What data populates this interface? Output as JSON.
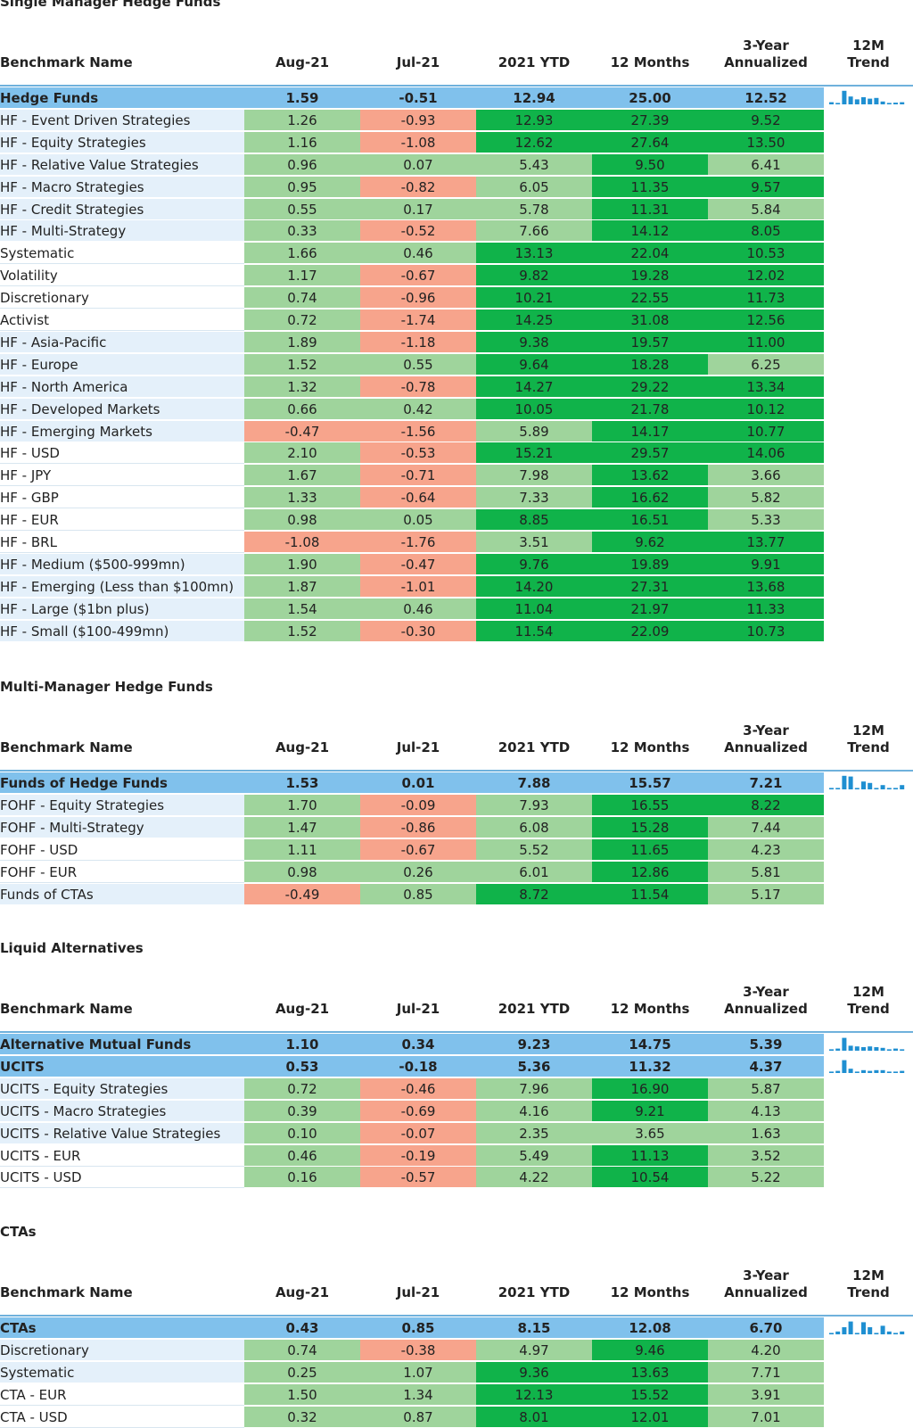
{
  "headers": {
    "name": "Benchmark Name",
    "aug": "Aug-21",
    "jul": "Jul-21",
    "ytd": "2021 YTD",
    "m12": "12 Months",
    "y3a": "3-Year",
    "y3b": "Annualized",
    "tra": "12M",
    "trb": "Trend"
  },
  "colors": {
    "main": "#80c1ec",
    "positive": "#9fd49c",
    "negative": "#f7a48c",
    "strong_positive": "#10b34a",
    "name_shade": "#e4f0fa",
    "spark": "#1f8fd1"
  },
  "sections": [
    {
      "title": "Single Manager Hedge Funds",
      "rows": [
        {
          "name": "Hedge Funds",
          "type": "main",
          "values": [
            "1.59",
            "-0.51",
            "12.94",
            "25.00",
            "12.52"
          ],
          "styles": [
            "",
            "",
            "",
            "",
            ""
          ],
          "trend": [
            0.15,
            0.1,
            0.95,
            0.55,
            0.35,
            0.5,
            0.4,
            0.45,
            0.2,
            0.1,
            0.12,
            0.15
          ]
        },
        {
          "name": "HF - Event Driven Strategies",
          "type": "blue",
          "values": [
            "1.26",
            "-0.93",
            "12.93",
            "27.39",
            "9.52"
          ],
          "styles": [
            "pos",
            "neg",
            "strong",
            "strong",
            "strong"
          ]
        },
        {
          "name": "HF - Equity Strategies",
          "type": "blue",
          "values": [
            "1.16",
            "-1.08",
            "12.62",
            "27.64",
            "13.50"
          ],
          "styles": [
            "pos",
            "neg",
            "strong",
            "strong",
            "strong"
          ]
        },
        {
          "name": "HF - Relative Value Strategies",
          "type": "blue",
          "values": [
            "0.96",
            "0.07",
            "5.43",
            "9.50",
            "6.41"
          ],
          "styles": [
            "pos",
            "pos",
            "pos",
            "strong",
            "pos"
          ]
        },
        {
          "name": "HF - Macro Strategies",
          "type": "blue",
          "values": [
            "0.95",
            "-0.82",
            "6.05",
            "11.35",
            "9.57"
          ],
          "styles": [
            "pos",
            "neg",
            "pos",
            "strong",
            "strong"
          ]
        },
        {
          "name": "HF - Credit Strategies",
          "type": "blue",
          "values": [
            "0.55",
            "0.17",
            "5.78",
            "11.31",
            "5.84"
          ],
          "styles": [
            "pos",
            "pos",
            "pos",
            "strong",
            "pos"
          ]
        },
        {
          "name": "HF - Multi-Strategy",
          "type": "blue",
          "values": [
            "0.33",
            "-0.52",
            "7.66",
            "14.12",
            "8.05"
          ],
          "styles": [
            "pos",
            "neg",
            "pos",
            "strong",
            "strong"
          ]
        },
        {
          "name": "Systematic",
          "type": "white",
          "values": [
            "1.66",
            "0.46",
            "13.13",
            "22.04",
            "10.53"
          ],
          "styles": [
            "pos",
            "pos",
            "strong",
            "strong",
            "strong"
          ]
        },
        {
          "name": "Volatility",
          "type": "white",
          "values": [
            "1.17",
            "-0.67",
            "9.82",
            "19.28",
            "12.02"
          ],
          "styles": [
            "pos",
            "neg",
            "strong",
            "strong",
            "strong"
          ]
        },
        {
          "name": "Discretionary",
          "type": "white",
          "values": [
            "0.74",
            "-0.96",
            "10.21",
            "22.55",
            "11.73"
          ],
          "styles": [
            "pos",
            "neg",
            "strong",
            "strong",
            "strong"
          ]
        },
        {
          "name": "Activist",
          "type": "white",
          "values": [
            "0.72",
            "-1.74",
            "14.25",
            "31.08",
            "12.56"
          ],
          "styles": [
            "pos",
            "neg",
            "strong",
            "strong",
            "strong"
          ]
        },
        {
          "name": "HF - Asia-Pacific",
          "type": "blue",
          "values": [
            "1.89",
            "-1.18",
            "9.38",
            "19.57",
            "11.00"
          ],
          "styles": [
            "pos",
            "neg",
            "strong",
            "strong",
            "strong"
          ]
        },
        {
          "name": "HF - Europe",
          "type": "blue",
          "values": [
            "1.52",
            "0.55",
            "9.64",
            "18.28",
            "6.25"
          ],
          "styles": [
            "pos",
            "pos",
            "strong",
            "strong",
            "pos"
          ]
        },
        {
          "name": "HF - North America",
          "type": "blue",
          "values": [
            "1.32",
            "-0.78",
            "14.27",
            "29.22",
            "13.34"
          ],
          "styles": [
            "pos",
            "neg",
            "strong",
            "strong",
            "strong"
          ]
        },
        {
          "name": "HF - Developed Markets",
          "type": "blue",
          "values": [
            "0.66",
            "0.42",
            "10.05",
            "21.78",
            "10.12"
          ],
          "styles": [
            "pos",
            "pos",
            "strong",
            "strong",
            "strong"
          ]
        },
        {
          "name": "HF - Emerging Markets",
          "type": "blue",
          "values": [
            "-0.47",
            "-1.56",
            "5.89",
            "14.17",
            "10.77"
          ],
          "styles": [
            "neg",
            "neg",
            "pos",
            "strong",
            "strong"
          ]
        },
        {
          "name": "HF - USD",
          "type": "white",
          "values": [
            "2.10",
            "-0.53",
            "15.21",
            "29.57",
            "14.06"
          ],
          "styles": [
            "pos",
            "neg",
            "strong",
            "strong",
            "strong"
          ]
        },
        {
          "name": "HF - JPY",
          "type": "white",
          "values": [
            "1.67",
            "-0.71",
            "7.98",
            "13.62",
            "3.66"
          ],
          "styles": [
            "pos",
            "neg",
            "pos",
            "strong",
            "pos"
          ]
        },
        {
          "name": "HF - GBP",
          "type": "white",
          "values": [
            "1.33",
            "-0.64",
            "7.33",
            "16.62",
            "5.82"
          ],
          "styles": [
            "pos",
            "neg",
            "pos",
            "strong",
            "pos"
          ]
        },
        {
          "name": "HF - EUR",
          "type": "white",
          "values": [
            "0.98",
            "0.05",
            "8.85",
            "16.51",
            "5.33"
          ],
          "styles": [
            "pos",
            "pos",
            "strong",
            "strong",
            "pos"
          ]
        },
        {
          "name": "HF - BRL",
          "type": "white",
          "values": [
            "-1.08",
            "-1.76",
            "3.51",
            "9.62",
            "13.77"
          ],
          "styles": [
            "neg",
            "neg",
            "pos",
            "strong",
            "strong"
          ]
        },
        {
          "name": "HF - Medium ($500-999mn)",
          "type": "blue",
          "values": [
            "1.90",
            "-0.47",
            "9.76",
            "19.89",
            "9.91"
          ],
          "styles": [
            "pos",
            "neg",
            "strong",
            "strong",
            "strong"
          ]
        },
        {
          "name": "HF - Emerging (Less than $100mn)",
          "type": "blue",
          "values": [
            "1.87",
            "-1.01",
            "14.20",
            "27.31",
            "13.68"
          ],
          "styles": [
            "pos",
            "neg",
            "strong",
            "strong",
            "strong"
          ]
        },
        {
          "name": "HF - Large ($1bn plus)",
          "type": "blue",
          "values": [
            "1.54",
            "0.46",
            "11.04",
            "21.97",
            "11.33"
          ],
          "styles": [
            "pos",
            "pos",
            "strong",
            "strong",
            "strong"
          ]
        },
        {
          "name": "HF - Small ($100-499mn)",
          "type": "blue",
          "values": [
            "1.52",
            "-0.30",
            "11.54",
            "22.09",
            "10.73"
          ],
          "styles": [
            "pos",
            "neg",
            "strong",
            "strong",
            "strong"
          ]
        }
      ]
    },
    {
      "title": "Multi-Manager Hedge Funds",
      "rows": [
        {
          "name": "Funds of Hedge Funds",
          "type": "main",
          "values": [
            "1.53",
            "0.01",
            "7.88",
            "15.57",
            "7.21"
          ],
          "styles": [
            "",
            "",
            "",
            "",
            ""
          ],
          "trend": [
            0.1,
            0.1,
            0.95,
            0.9,
            0.1,
            0.55,
            0.45,
            0.1,
            0.3,
            0.1,
            0.1,
            0.3
          ]
        },
        {
          "name": "FOHF - Equity Strategies",
          "type": "blue",
          "values": [
            "1.70",
            "-0.09",
            "7.93",
            "16.55",
            "8.22"
          ],
          "styles": [
            "pos",
            "neg",
            "pos",
            "strong",
            "strong"
          ]
        },
        {
          "name": "FOHF - Multi-Strategy",
          "type": "blue",
          "values": [
            "1.47",
            "-0.86",
            "6.08",
            "15.28",
            "7.44"
          ],
          "styles": [
            "pos",
            "neg",
            "pos",
            "strong",
            "pos"
          ]
        },
        {
          "name": "FOHF - USD",
          "type": "white",
          "values": [
            "1.11",
            "-0.67",
            "5.52",
            "11.65",
            "4.23"
          ],
          "styles": [
            "pos",
            "neg",
            "pos",
            "strong",
            "pos"
          ]
        },
        {
          "name": "FOHF - EUR",
          "type": "white",
          "values": [
            "0.98",
            "0.26",
            "6.01",
            "12.86",
            "5.81"
          ],
          "styles": [
            "pos",
            "pos",
            "pos",
            "strong",
            "pos"
          ]
        },
        {
          "name": "Funds of CTAs",
          "type": "blue",
          "values": [
            "-0.49",
            "0.85",
            "8.72",
            "11.54",
            "5.17"
          ],
          "styles": [
            "neg",
            "pos",
            "strong",
            "strong",
            "pos"
          ]
        }
      ]
    },
    {
      "title": "Liquid Alternatives",
      "rows": [
        {
          "name": "Alternative Mutual Funds",
          "type": "main",
          "values": [
            "1.10",
            "0.34",
            "9.23",
            "14.75",
            "5.39"
          ],
          "styles": [
            "",
            "",
            "",
            "",
            ""
          ],
          "trend": [
            0.1,
            0.15,
            0.9,
            0.35,
            0.3,
            0.25,
            0.3,
            0.25,
            0.2,
            0.1,
            0.15,
            0.1
          ]
        },
        {
          "name": "UCITS",
          "type": "main",
          "values": [
            "0.53",
            "-0.18",
            "5.36",
            "11.32",
            "4.37"
          ],
          "styles": [
            "",
            "",
            "",
            "",
            ""
          ],
          "trend": [
            0.1,
            0.15,
            0.9,
            0.3,
            0.1,
            0.2,
            0.15,
            0.2,
            0.2,
            0.1,
            0.1,
            0.15
          ]
        },
        {
          "name": "UCITS - Equity Strategies",
          "type": "blue",
          "values": [
            "0.72",
            "-0.46",
            "7.96",
            "16.90",
            "5.87"
          ],
          "styles": [
            "pos",
            "neg",
            "pos",
            "strong",
            "pos"
          ]
        },
        {
          "name": "UCITS - Macro Strategies",
          "type": "blue",
          "values": [
            "0.39",
            "-0.69",
            "4.16",
            "9.21",
            "4.13"
          ],
          "styles": [
            "pos",
            "neg",
            "pos",
            "strong",
            "pos"
          ]
        },
        {
          "name": "UCITS - Relative Value Strategies",
          "type": "blue",
          "values": [
            "0.10",
            "-0.07",
            "2.35",
            "3.65",
            "1.63"
          ],
          "styles": [
            "pos",
            "neg",
            "pos",
            "pos",
            "pos"
          ]
        },
        {
          "name": "UCITS - EUR",
          "type": "white",
          "values": [
            "0.46",
            "-0.19",
            "5.49",
            "11.13",
            "3.52"
          ],
          "styles": [
            "pos",
            "neg",
            "pos",
            "strong",
            "pos"
          ]
        },
        {
          "name": "UCITS - USD",
          "type": "white",
          "values": [
            "0.16",
            "-0.57",
            "4.22",
            "10.54",
            "5.22"
          ],
          "styles": [
            "pos",
            "neg",
            "pos",
            "strong",
            "pos"
          ]
        }
      ]
    },
    {
      "title": "CTAs",
      "rows": [
        {
          "name": "CTAs",
          "type": "main",
          "values": [
            "0.43",
            "0.85",
            "8.15",
            "12.08",
            "6.70"
          ],
          "styles": [
            "",
            "",
            "",
            "",
            ""
          ],
          "trend": [
            0.1,
            0.2,
            0.5,
            0.9,
            0.1,
            0.85,
            0.5,
            0.1,
            0.6,
            0.2,
            0.1,
            0.2
          ]
        },
        {
          "name": "Discretionary",
          "type": "blue",
          "values": [
            "0.74",
            "-0.38",
            "4.97",
            "9.46",
            "4.20"
          ],
          "styles": [
            "pos",
            "neg",
            "pos",
            "strong",
            "pos"
          ]
        },
        {
          "name": "Systematic",
          "type": "blue",
          "values": [
            "0.25",
            "1.07",
            "9.36",
            "13.63",
            "7.71"
          ],
          "styles": [
            "pos",
            "pos",
            "strong",
            "strong",
            "pos"
          ]
        },
        {
          "name": "CTA - EUR",
          "type": "white",
          "values": [
            "1.50",
            "1.34",
            "12.13",
            "15.52",
            "3.91"
          ],
          "styles": [
            "pos",
            "pos",
            "strong",
            "strong",
            "pos"
          ]
        },
        {
          "name": "CTA - USD",
          "type": "white",
          "values": [
            "0.32",
            "0.87",
            "8.01",
            "12.01",
            "7.01"
          ],
          "styles": [
            "pos",
            "pos",
            "strong",
            "strong",
            "pos"
          ]
        }
      ]
    }
  ]
}
